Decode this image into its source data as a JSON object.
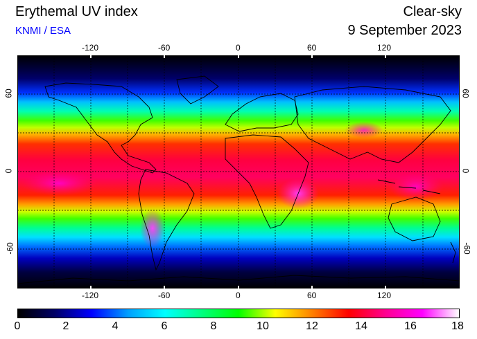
{
  "header": {
    "title": "Erythemal UV index",
    "subtitle": "KNMI / ESA",
    "mode": "Clear-sky",
    "date": "9 September 2023"
  },
  "map": {
    "lon_ticks": [
      "-120",
      "-60",
      "0",
      "60",
      "120"
    ],
    "lat_ticks_left": [
      "60",
      "0",
      "-60"
    ],
    "lat_ticks_right": [
      "60",
      "0",
      "-60"
    ],
    "gridlines": "dashed",
    "projection": "equirectangular"
  },
  "colorbar": {
    "labels": [
      "0",
      "2",
      "4",
      "6",
      "8",
      "10",
      "12",
      "14",
      "16",
      "18"
    ],
    "min": 0,
    "max": 18,
    "stops": [
      "#000000",
      "#000066",
      "#0000ff",
      "#00a0ff",
      "#00ffff",
      "#00ff80",
      "#00ff00",
      "#ffff00",
      "#ff8000",
      "#ff0000",
      "#ff0090",
      "#ff00ff",
      "#ffffff"
    ]
  },
  "chart_data": {
    "type": "heatmap",
    "title": "Erythemal UV index",
    "variable": "UV index",
    "range": [
      0,
      18
    ],
    "zonal_uv_by_latitude": {
      "lat": [
        90,
        80,
        70,
        60,
        50,
        40,
        30,
        20,
        10,
        0,
        -10,
        -20,
        -30,
        -40,
        -50,
        -60,
        -70,
        -80,
        -90
      ],
      "uv": [
        0,
        0.5,
        2,
        3.5,
        5.5,
        7.5,
        10,
        11.5,
        12.5,
        13,
        12.5,
        11.5,
        9.5,
        7,
        4.5,
        2.5,
        1,
        0.2,
        0
      ]
    },
    "colors": {
      "low": "#000000",
      "mid": "#00ff00",
      "high": "#ff00ff",
      "max": "#ffffff"
    }
  }
}
